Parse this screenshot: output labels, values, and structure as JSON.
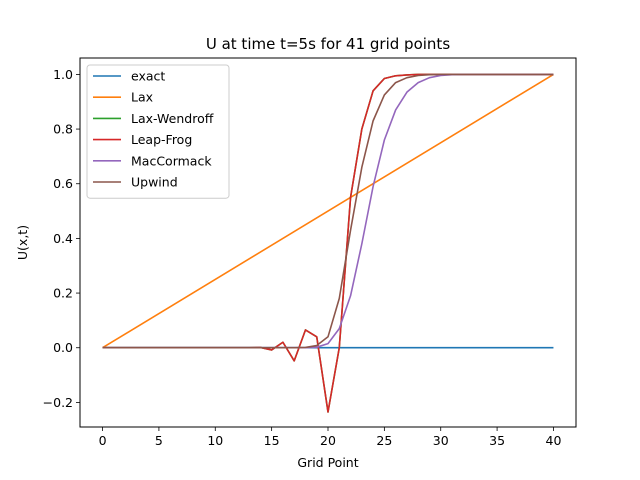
{
  "chart_data": {
    "type": "line",
    "title": "U at time t=5s for 41 grid points",
    "xlabel": "Grid Point",
    "ylabel": "U(x,t)",
    "xlim": [
      -2,
      42
    ],
    "ylim": [
      -0.29,
      1.06
    ],
    "xticks": [
      0,
      5,
      10,
      15,
      20,
      25,
      30,
      35,
      40
    ],
    "yticks": [
      -0.2,
      0.0,
      0.2,
      0.4,
      0.6,
      0.8,
      1.0
    ],
    "ytick_labels": [
      "−0.2",
      "0.0",
      "0.2",
      "0.4",
      "0.6",
      "0.8",
      "1.0"
    ],
    "grid": false,
    "legend_position": "upper-left",
    "series": [
      {
        "name": "exact",
        "color": "#1f77b4",
        "x": [
          0,
          40
        ],
        "y": [
          0,
          0
        ]
      },
      {
        "name": "Lax",
        "color": "#ff7f0e",
        "x": [
          0,
          40
        ],
        "y": [
          0,
          1
        ]
      },
      {
        "name": "Lax-Wendroff",
        "color": "#2ca02c",
        "x": [
          0,
          1,
          2,
          3,
          4,
          5,
          6,
          7,
          8,
          9,
          10,
          11,
          12,
          13,
          14,
          15,
          16,
          17,
          18,
          19,
          20,
          21,
          22,
          23,
          24,
          25,
          26,
          27,
          28,
          29,
          30,
          31,
          32,
          33,
          34,
          35,
          36,
          37,
          38,
          39,
          40
        ],
        "y": [
          0,
          0,
          0,
          0,
          0,
          0,
          0,
          0,
          0,
          0,
          0,
          0,
          0,
          0,
          0.001,
          -0.008,
          0.02,
          -0.048,
          0.065,
          0.04,
          -0.235,
          0.0,
          0.55,
          0.8,
          0.94,
          0.985,
          0.995,
          0.998,
          1,
          1,
          1,
          1,
          1,
          1,
          1,
          1,
          1,
          1,
          1,
          1,
          1
        ]
      },
      {
        "name": "Leap-Frog",
        "color": "#d62728",
        "x": [
          0,
          1,
          2,
          3,
          4,
          5,
          6,
          7,
          8,
          9,
          10,
          11,
          12,
          13,
          14,
          15,
          16,
          17,
          18,
          19,
          20,
          21,
          22,
          23,
          24,
          25,
          26,
          27,
          28,
          29,
          30,
          31,
          32,
          33,
          34,
          35,
          36,
          37,
          38,
          39,
          40
        ],
        "y": [
          0,
          0,
          0,
          0,
          0,
          0,
          0,
          0,
          0,
          0,
          0,
          0,
          0,
          0,
          0.001,
          -0.008,
          0.02,
          -0.048,
          0.065,
          0.04,
          -0.235,
          0.0,
          0.55,
          0.8,
          0.94,
          0.985,
          0.995,
          0.998,
          1,
          1,
          1,
          1,
          1,
          1,
          1,
          1,
          1,
          1,
          1,
          1,
          1
        ]
      },
      {
        "name": "MacCormack",
        "color": "#9467bd",
        "x": [
          0,
          1,
          2,
          3,
          4,
          5,
          6,
          7,
          8,
          9,
          10,
          11,
          12,
          13,
          14,
          15,
          16,
          17,
          18,
          19,
          20,
          21,
          22,
          23,
          24,
          25,
          26,
          27,
          28,
          29,
          30,
          31,
          32,
          33,
          34,
          35,
          36,
          37,
          38,
          39,
          40
        ],
        "y": [
          0,
          0,
          0,
          0,
          0,
          0,
          0,
          0,
          0,
          0,
          0,
          0,
          0,
          0,
          0,
          0,
          0,
          0,
          0,
          0.002,
          0.015,
          0.07,
          0.19,
          0.38,
          0.59,
          0.76,
          0.87,
          0.935,
          0.97,
          0.988,
          0.996,
          0.999,
          1,
          1,
          1,
          1,
          1,
          1,
          1,
          1,
          1
        ]
      },
      {
        "name": "Upwind",
        "color": "#8c564b",
        "x": [
          0,
          1,
          2,
          3,
          4,
          5,
          6,
          7,
          8,
          9,
          10,
          11,
          12,
          13,
          14,
          15,
          16,
          17,
          18,
          19,
          20,
          21,
          22,
          23,
          24,
          25,
          26,
          27,
          28,
          29,
          30,
          31,
          32,
          33,
          34,
          35,
          36,
          37,
          38,
          39,
          40
        ],
        "y": [
          0,
          0,
          0,
          0,
          0,
          0,
          0,
          0,
          0,
          0,
          0,
          0,
          0,
          0,
          0,
          0,
          0,
          0,
          0.001,
          0.008,
          0.04,
          0.18,
          0.43,
          0.66,
          0.83,
          0.925,
          0.97,
          0.988,
          0.996,
          0.999,
          1,
          1,
          1,
          1,
          1,
          1,
          1,
          1,
          1,
          1,
          1
        ]
      }
    ]
  }
}
